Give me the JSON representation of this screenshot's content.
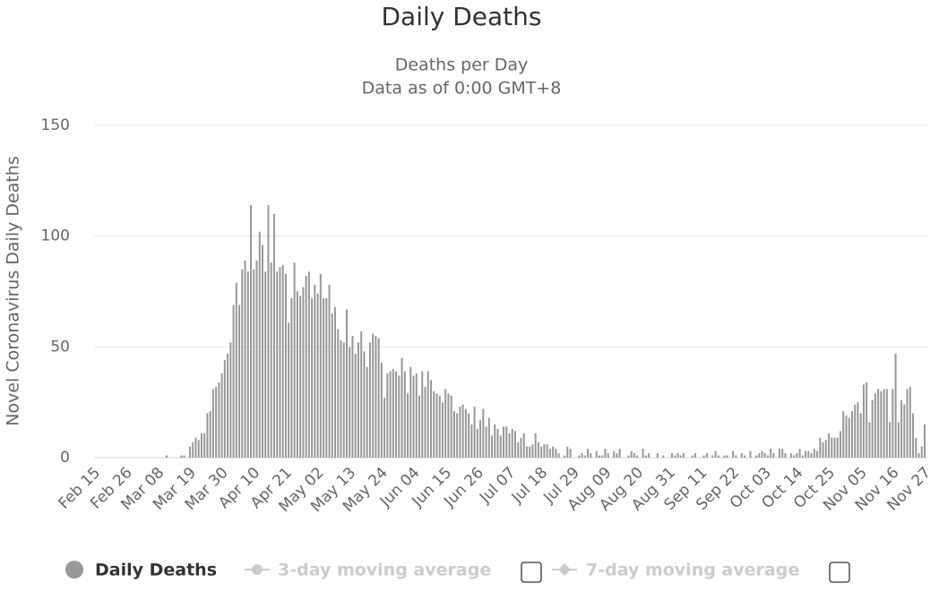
{
  "chart_data": {
    "type": "bar",
    "title": "Daily Deaths",
    "subtitle": [
      "Deaths per Day",
      "Data as of 0:00 GMT+8"
    ],
    "y_label": "Novel Coronavirus Daily Deaths",
    "categories": [
      "Feb 15",
      null,
      null,
      null,
      null,
      null,
      null,
      null,
      null,
      null,
      null,
      "Feb 26",
      null,
      null,
      null,
      null,
      null,
      null,
      null,
      null,
      null,
      null,
      "Mar 08",
      null,
      null,
      null,
      null,
      null,
      null,
      null,
      null,
      null,
      null,
      "Mar 19",
      null,
      null,
      null,
      null,
      null,
      null,
      null,
      null,
      null,
      null,
      "Mar 30",
      null,
      null,
      null,
      null,
      null,
      null,
      null,
      null,
      null,
      null,
      "Apr 10",
      null,
      null,
      null,
      null,
      null,
      null,
      null,
      null,
      null,
      null,
      "Apr 21",
      null,
      null,
      null,
      null,
      null,
      null,
      null,
      null,
      null,
      null,
      "May 02",
      null,
      null,
      null,
      null,
      null,
      null,
      null,
      null,
      null,
      null,
      "May 13",
      null,
      null,
      null,
      null,
      null,
      null,
      null,
      null,
      null,
      null,
      "May 24",
      null,
      null,
      null,
      null,
      null,
      null,
      null,
      null,
      null,
      null,
      "Jun 04",
      null,
      null,
      null,
      null,
      null,
      null,
      null,
      null,
      null,
      null,
      "Jun 15",
      null,
      null,
      null,
      null,
      null,
      null,
      null,
      null,
      null,
      null,
      "Jun 26",
      null,
      null,
      null,
      null,
      null,
      null,
      null,
      null,
      null,
      null,
      "Jul 07",
      null,
      null,
      null,
      null,
      null,
      null,
      null,
      null,
      null,
      null,
      "Jul 18",
      null,
      null,
      null,
      null,
      null,
      null,
      null,
      null,
      null,
      null,
      "Jul 29",
      null,
      null,
      null,
      null,
      null,
      null,
      null,
      null,
      null,
      null,
      "Aug 09",
      null,
      null,
      null,
      null,
      null,
      null,
      null,
      null,
      null,
      null,
      "Aug 20",
      null,
      null,
      null,
      null,
      null,
      null,
      null,
      null,
      null,
      null,
      "Aug 31",
      null,
      null,
      null,
      null,
      null,
      null,
      null,
      null,
      null,
      null,
      "Sep 11",
      null,
      null,
      null,
      null,
      null,
      null,
      null,
      null,
      null,
      null,
      "Sep 22",
      null,
      null,
      null,
      null,
      null,
      null,
      null,
      null,
      null,
      null,
      "Oct 03",
      null,
      null,
      null,
      null,
      null,
      null,
      null,
      null,
      null,
      null,
      "Oct 14",
      null,
      null,
      null,
      null,
      null,
      null,
      null,
      null,
      null,
      null,
      "Oct 25",
      null,
      null,
      null,
      null,
      null,
      null,
      null,
      null,
      null,
      null,
      "Nov 05",
      null,
      null,
      null,
      null,
      null,
      null,
      null,
      null,
      null,
      null,
      "Nov 16",
      null,
      null,
      null,
      null,
      null,
      null,
      null,
      null,
      null,
      null,
      "Nov 27"
    ],
    "series": [
      {
        "name": "Daily Deaths",
        "color": "#999999",
        "visible": true,
        "values": [
          0,
          0,
          0,
          0,
          0,
          0,
          0,
          0,
          0,
          0,
          0,
          0,
          0,
          0,
          0,
          0,
          0,
          0,
          0,
          0,
          0,
          0,
          0,
          0,
          0,
          1,
          0,
          0,
          0,
          0,
          1,
          1,
          0,
          5,
          7,
          9,
          8,
          11,
          11,
          20,
          21,
          31,
          32,
          34,
          38,
          44,
          47,
          52,
          69,
          79,
          69,
          85,
          89,
          84,
          114,
          85,
          89,
          102,
          96,
          84,
          114,
          88,
          110,
          84,
          86,
          87,
          83,
          61,
          72,
          88,
          75,
          73,
          77,
          82,
          84,
          72,
          78,
          74,
          83,
          72,
          72,
          78,
          65,
          68,
          58,
          53,
          52,
          67,
          50,
          55,
          47,
          52,
          57,
          48,
          41,
          52,
          56,
          55,
          54,
          43,
          27,
          38,
          39,
          40,
          39,
          37,
          45,
          39,
          29,
          41,
          37,
          38,
          28,
          39,
          32,
          39,
          35,
          30,
          29,
          28,
          25,
          31,
          29,
          28,
          21,
          20,
          23,
          24,
          22,
          20,
          15,
          23,
          13,
          17,
          22,
          14,
          18,
          10,
          15,
          13,
          10,
          14,
          14,
          11,
          13,
          12,
          7,
          9,
          11,
          5,
          5,
          6,
          11,
          7,
          5,
          6,
          6,
          4,
          5,
          4,
          2,
          0,
          1,
          5,
          4,
          0,
          0,
          1,
          2,
          1,
          4,
          2,
          0,
          3,
          1,
          1,
          4,
          2,
          0,
          3,
          2,
          4,
          0,
          0,
          1,
          3,
          2,
          1,
          0,
          4,
          1,
          2,
          0,
          0,
          2,
          0,
          1,
          0,
          0,
          2,
          1,
          2,
          1,
          2,
          0,
          0,
          1,
          2,
          0,
          0,
          1,
          2,
          0,
          1,
          3,
          1,
          0,
          1,
          1,
          0,
          3,
          1,
          0,
          2,
          1,
          0,
          3,
          0,
          1,
          2,
          3,
          2,
          1,
          4,
          2,
          0,
          4,
          4,
          2,
          0,
          2,
          1,
          2,
          4,
          1,
          3,
          3,
          2,
          4,
          3,
          9,
          7,
          8,
          11,
          9,
          9,
          9,
          12,
          21,
          19,
          18,
          21,
          24,
          25,
          20,
          33,
          34,
          16,
          26,
          29,
          31,
          30,
          31,
          31,
          16,
          31,
          47,
          16,
          26,
          24,
          31,
          32,
          20,
          9,
          2,
          5,
          15
        ]
      },
      {
        "name": "3-day moving average",
        "color": "#cccccc",
        "visible": false
      },
      {
        "name": "7-day moving average",
        "color": "#cccccc",
        "visible": false
      }
    ],
    "ylim": [
      0,
      150
    ],
    "yticks": [
      0,
      50,
      100,
      150
    ],
    "grid": true
  }
}
